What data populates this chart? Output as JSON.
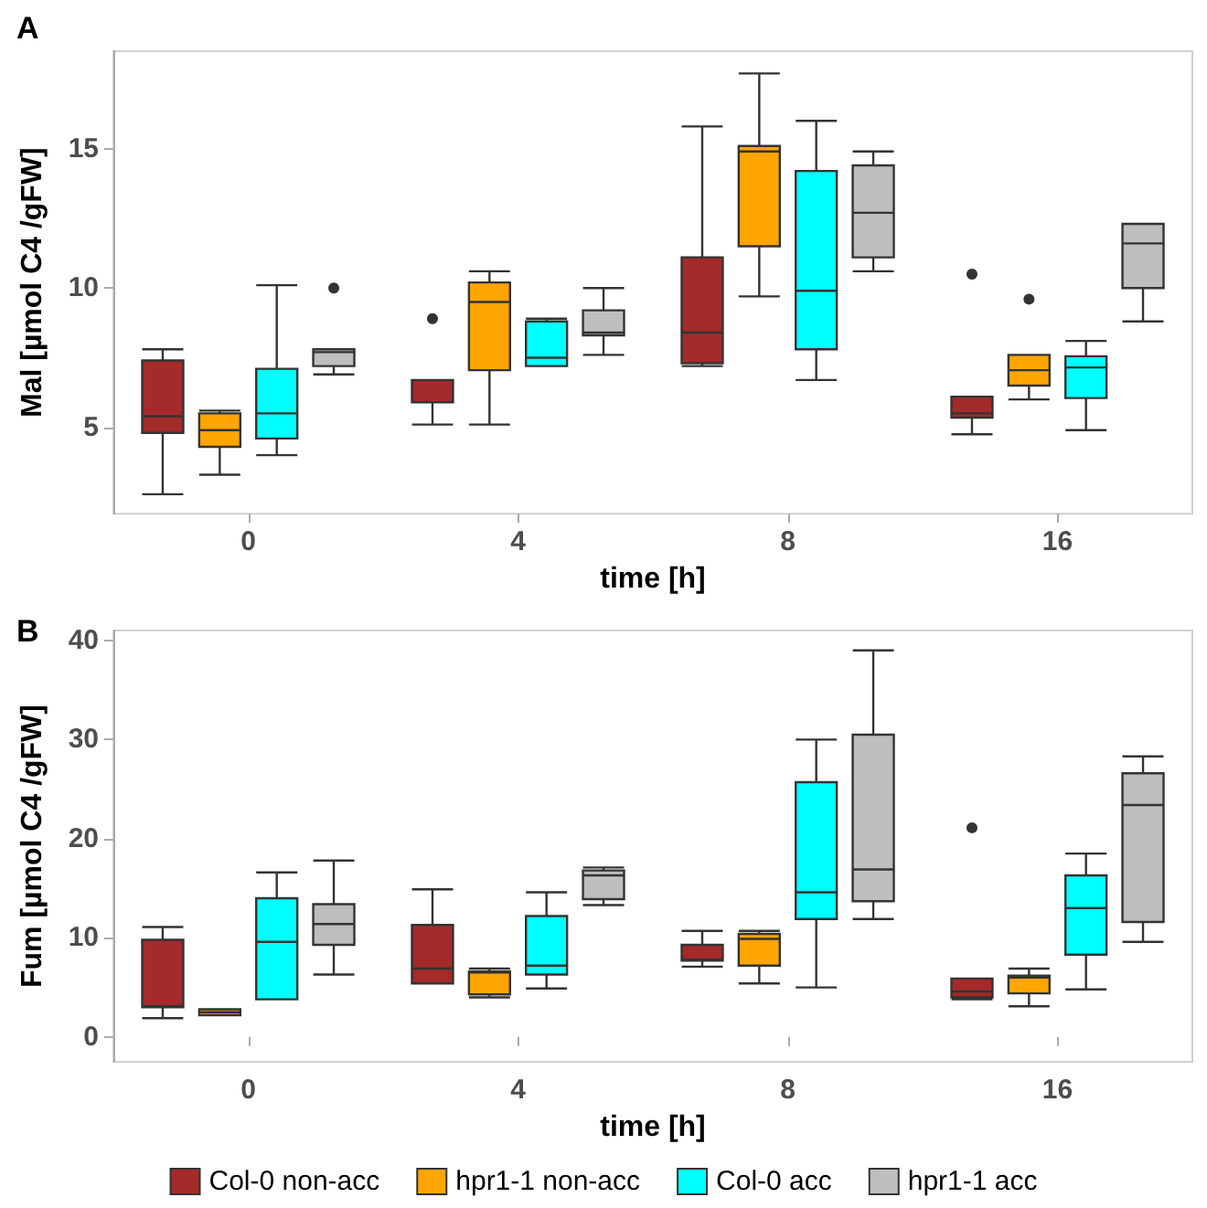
{
  "chart_data": [
    {
      "type": "box",
      "title": "A",
      "xlabel": "time [h]",
      "ylabel": "Mal [µmol C4 /gFW]",
      "categories": [
        "0",
        "4",
        "8",
        "16"
      ],
      "ylim": [
        1.9,
        18.5
      ],
      "yticks": [
        5,
        10,
        15
      ],
      "grid": false,
      "legend": false,
      "series": [
        {
          "color": "#a52a2a",
          "boxes": [
            {
              "low": 2.6,
              "q1": 4.8,
              "median": 5.4,
              "q3": 7.4,
              "high": 7.8
            },
            {
              "low": 5.1,
              "q1": 5.9,
              "median": 5.9,
              "q3": 6.7,
              "high": 6.7,
              "outliers": [
                8.9
              ]
            },
            {
              "low": 7.2,
              "q1": 7.3,
              "median": 8.4,
              "q3": 11.1,
              "high": 15.8
            },
            {
              "low": 4.75,
              "q1": 5.35,
              "median": 5.5,
              "q3": 6.1,
              "high": 6.1,
              "outliers": [
                10.5
              ]
            }
          ]
        },
        {
          "color": "#ffa500",
          "boxes": [
            {
              "low": 3.3,
              "q1": 4.3,
              "median": 4.9,
              "q3": 5.5,
              "high": 5.6
            },
            {
              "low": 5.1,
              "q1": 7.05,
              "median": 9.5,
              "q3": 10.2,
              "high": 10.6
            },
            {
              "low": 9.7,
              "q1": 11.5,
              "median": 14.9,
              "q3": 15.1,
              "high": 17.7
            },
            {
              "low": 6.0,
              "q1": 6.5,
              "median": 7.05,
              "q3": 7.6,
              "high": 7.6,
              "outliers": [
                9.6
              ]
            }
          ]
        },
        {
          "color": "#00ffff",
          "boxes": [
            {
              "low": 4.0,
              "q1": 4.6,
              "median": 5.5,
              "q3": 7.1,
              "high": 10.1
            },
            {
              "low": 7.2,
              "q1": 7.2,
              "median": 7.5,
              "q3": 8.8,
              "high": 8.9
            },
            {
              "low": 6.7,
              "q1": 7.8,
              "median": 9.9,
              "q3": 14.2,
              "high": 16.0
            },
            {
              "low": 4.9,
              "q1": 6.05,
              "median": 7.15,
              "q3": 7.55,
              "high": 8.1
            }
          ]
        },
        {
          "color": "#bebebe",
          "boxes": [
            {
              "low": 6.9,
              "q1": 7.2,
              "median": 7.7,
              "q3": 7.8,
              "high": 7.8,
              "outliers": [
                10.0
              ]
            },
            {
              "low": 7.6,
              "q1": 8.3,
              "median": 8.4,
              "q3": 9.2,
              "high": 10.0
            },
            {
              "low": 10.6,
              "q1": 11.1,
              "median": 12.7,
              "q3": 14.4,
              "high": 14.9
            },
            {
              "low": 8.8,
              "q1": 10.0,
              "median": 11.6,
              "q3": 12.3,
              "high": 12.3
            }
          ]
        }
      ]
    },
    {
      "type": "box",
      "title": "B",
      "xlabel": "time [h]",
      "ylabel": "Fum [µmol C4 /gFW]",
      "categories": [
        "0",
        "4",
        "8",
        "16"
      ],
      "ylim": [
        -2.5,
        41
      ],
      "yticks": [
        0,
        10,
        20,
        30,
        40
      ],
      "grid": false,
      "legend": "bottom",
      "series": [
        {
          "name": "Col-0 non-acc",
          "color": "#a52a2a",
          "boxes": [
            {
              "low": 1.9,
              "q1": 3.0,
              "median": 3.1,
              "q3": 9.8,
              "high": 11.1
            },
            {
              "low": 5.4,
              "q1": 5.4,
              "median": 6.9,
              "q3": 11.3,
              "high": 14.9
            },
            {
              "low": 7.1,
              "q1": 7.7,
              "median": 7.8,
              "q3": 9.3,
              "high": 10.7
            },
            {
              "low": 3.8,
              "q1": 4.0,
              "median": 4.6,
              "q3": 5.9,
              "high": 5.9,
              "outliers": [
                21.1
              ]
            }
          ]
        },
        {
          "name": "hpr1-1 non-acc",
          "color": "#ffa500",
          "boxes": [
            {
              "low": 2.2,
              "q1": 2.2,
              "median": 2.5,
              "q3": 2.8,
              "high": 2.8
            },
            {
              "low": 4.0,
              "q1": 4.3,
              "median": 6.5,
              "q3": 6.6,
              "high": 6.9
            },
            {
              "low": 5.4,
              "q1": 7.2,
              "median": 9.9,
              "q3": 10.4,
              "high": 10.7
            },
            {
              "low": 3.1,
              "q1": 4.4,
              "median": 6.0,
              "q3": 6.2,
              "high": 6.9
            }
          ]
        },
        {
          "name": "Col-0 acc",
          "color": "#00ffff",
          "boxes": [
            {
              "low": 3.8,
              "q1": 3.8,
              "median": 9.6,
              "q3": 14.0,
              "high": 16.6
            },
            {
              "low": 4.9,
              "q1": 6.3,
              "median": 7.2,
              "q3": 12.2,
              "high": 14.6
            },
            {
              "low": 5.0,
              "q1": 11.9,
              "median": 14.6,
              "q3": 25.7,
              "high": 30.0
            },
            {
              "low": 4.8,
              "q1": 8.3,
              "median": 13.0,
              "q3": 16.3,
              "high": 18.5
            }
          ]
        },
        {
          "name": "hpr1-1 acc",
          "color": "#bebebe",
          "boxes": [
            {
              "low": 6.3,
              "q1": 9.3,
              "median": 11.4,
              "q3": 13.4,
              "high": 17.8
            },
            {
              "low": 13.3,
              "q1": 13.9,
              "median": 16.3,
              "q3": 16.8,
              "high": 17.1
            },
            {
              "low": 11.9,
              "q1": 13.7,
              "median": 16.9,
              "q3": 30.5,
              "high": 39.0
            },
            {
              "low": 9.6,
              "q1": 11.6,
              "median": 23.4,
              "q3": 26.6,
              "high": 28.3
            }
          ]
        }
      ]
    }
  ]
}
